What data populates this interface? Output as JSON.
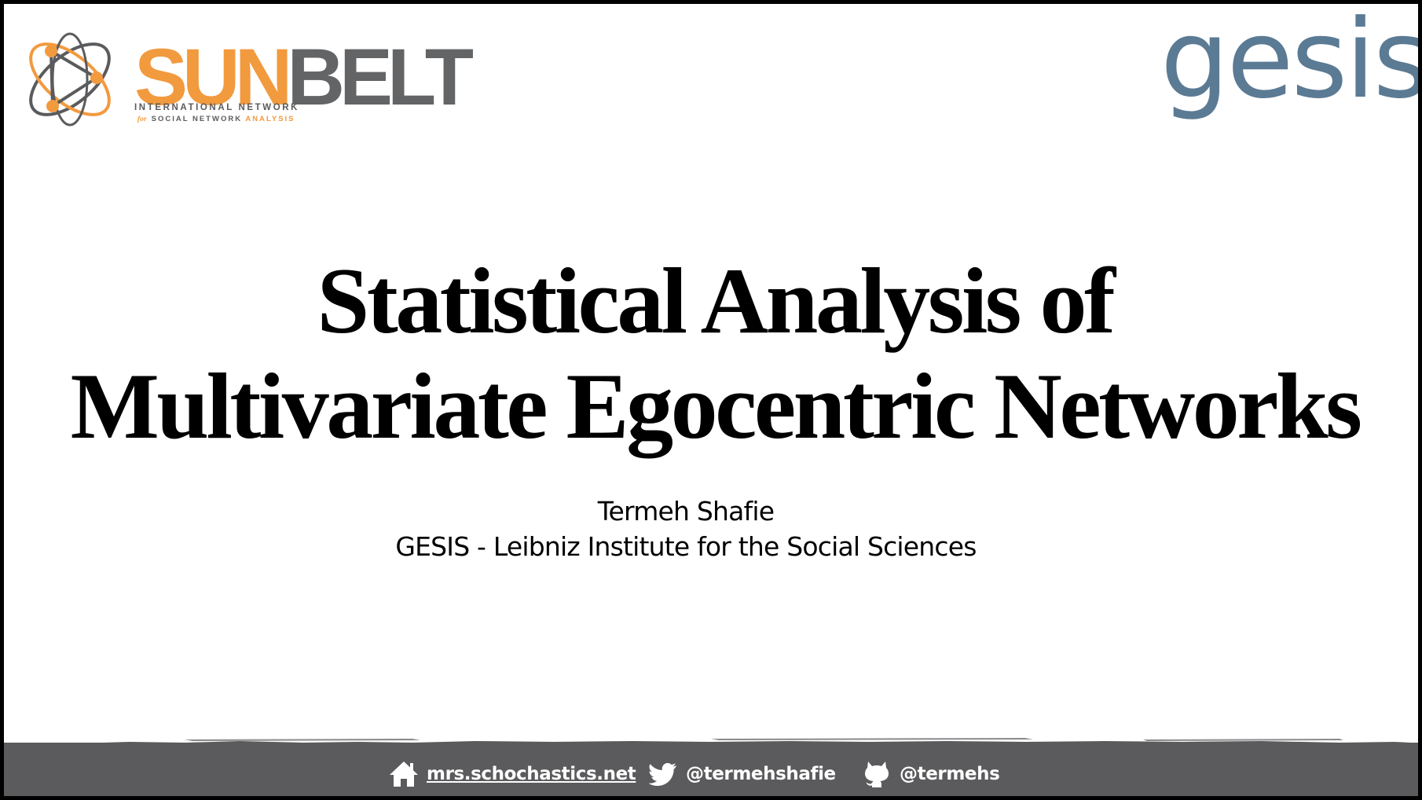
{
  "logos": {
    "sunbelt": {
      "word_sun": "SUN",
      "word_belt": "BELT",
      "tagline_line1": "INTERNATIONAL NETWORK",
      "tagline_for": "for",
      "tagline_line2": "SOCIAL NETWORK",
      "tagline_analysis": "ANALYSIS",
      "colors": {
        "orange": "#f29a3e",
        "gray": "#636466"
      }
    },
    "gesis": {
      "word": "gesis",
      "color": "#5b7a94"
    }
  },
  "title": {
    "line1": "Statistical Analysis of",
    "line2": "Multivariate Egocentric Networks"
  },
  "author": "Termeh Shafie",
  "affiliation": "GESIS - Leibniz Institute for the Social Sciences",
  "footer": {
    "background": "#5b5b5d",
    "website": {
      "icon": "home-icon",
      "label": "mrs.schochastics.net"
    },
    "twitter": {
      "icon": "twitter-icon",
      "label": "@termehshafie"
    },
    "github": {
      "icon": "github-icon",
      "label": "@termehs"
    }
  }
}
